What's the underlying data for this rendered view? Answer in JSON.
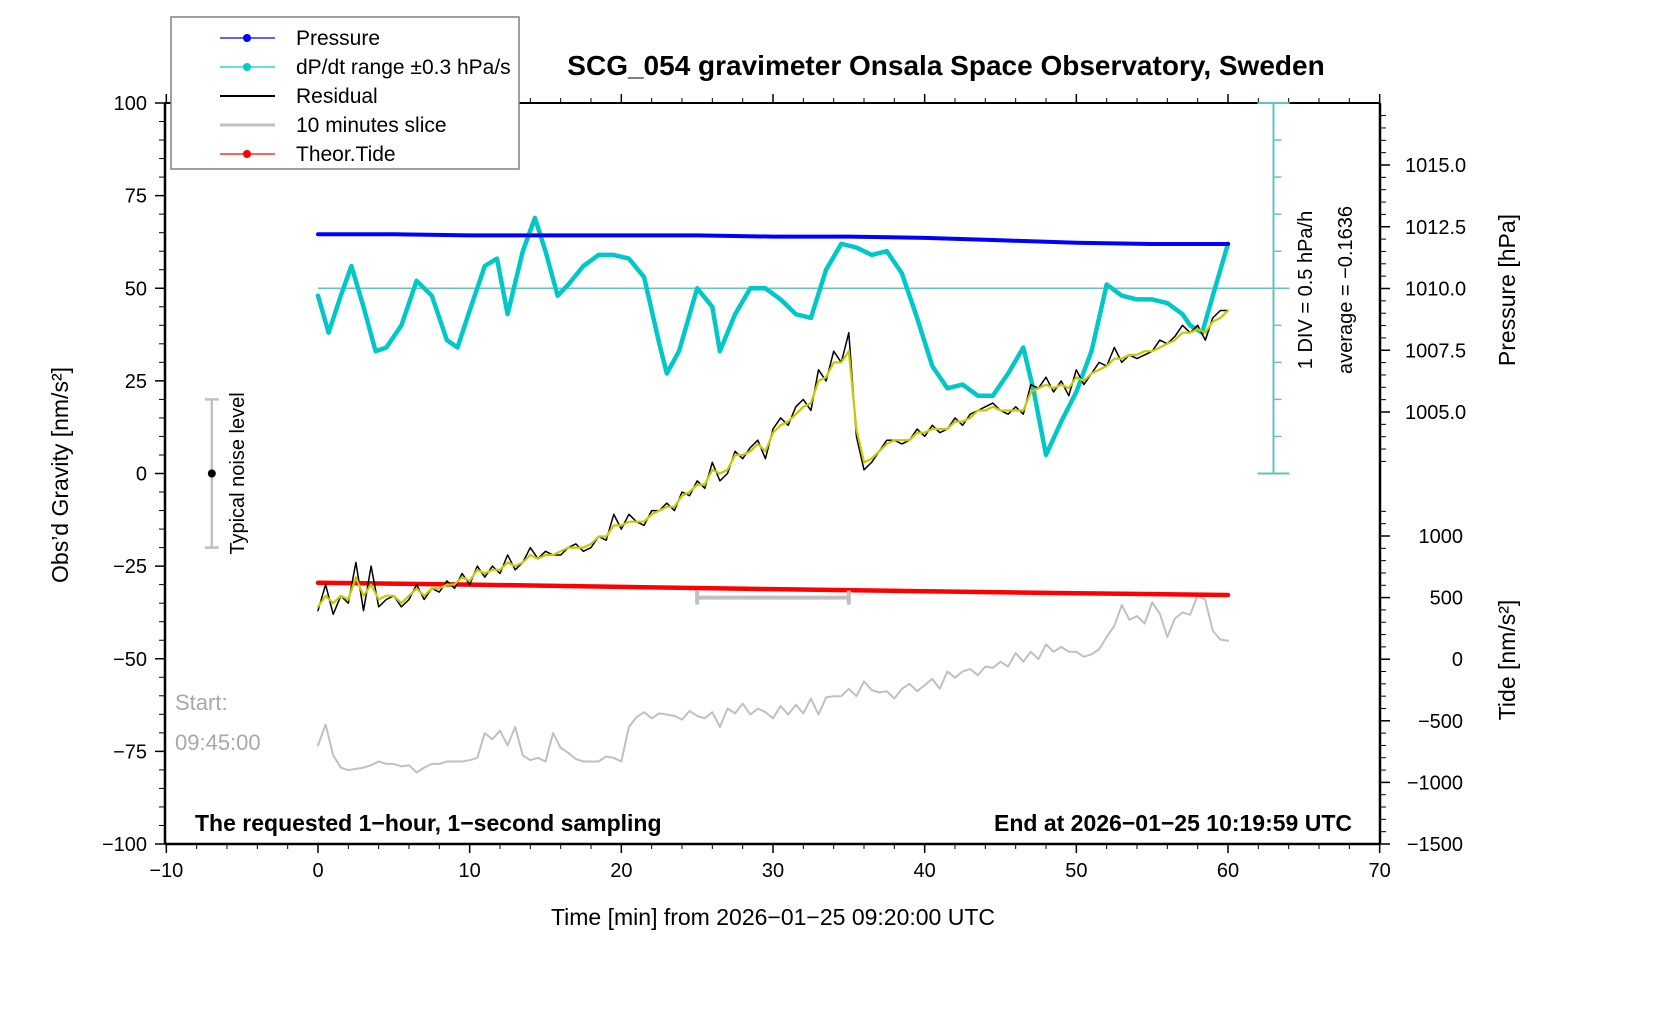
{
  "chart_data": {
    "type": "line",
    "title": "SCG_054 gravimeter Onsala Space Observatory, Sweden",
    "xlabel": "Time [min] from 2026−01−25 09:20:00 UTC",
    "ylabel_left": "Obs’d Gravity [nm/s²]",
    "ylabel_right_pressure": "Pressure [hPa]",
    "ylabel_right_tide": "Tide [nm/s²]",
    "xlim": [
      -10,
      70
    ],
    "ylim_left": [
      -100,
      100
    ],
    "ylim_pressure": [
      1002.5,
      1017.5
    ],
    "ylim_tide": [
      -1500,
      1000
    ],
    "x_ticks": [
      "−10",
      "0",
      "10",
      "20",
      "30",
      "40",
      "50",
      "60",
      "70"
    ],
    "x_tick_values": [
      -10,
      0,
      10,
      20,
      30,
      40,
      50,
      60,
      70
    ],
    "y_left_ticks": [
      "100",
      "75",
      "50",
      "25",
      "0",
      "−25",
      "−50",
      "−75",
      "−100"
    ],
    "y_left_tick_values": [
      100,
      75,
      50,
      25,
      0,
      -25,
      -50,
      -75,
      -100
    ],
    "y_pressure_ticks": [
      "1015.0",
      "1012.5",
      "1010.0",
      "1007.5",
      "1005.0"
    ],
    "y_pressure_tick_values": [
      1015.0,
      1012.5,
      1010.0,
      1007.5,
      1005.0
    ],
    "y_tide_ticks": [
      "1000",
      "500",
      "0",
      "−500",
      "−1000",
      "−1500"
    ],
    "y_tide_tick_values": [
      1000,
      500,
      0,
      -500,
      -1000,
      -1500
    ],
    "legend": {
      "placement": "top-left",
      "entries": [
        {
          "label": "Pressure",
          "color": "#0000ff",
          "marker": true
        },
        {
          "label": "dP/dt range ±0.3 hPa/s",
          "color": "#00cccc",
          "marker": true
        },
        {
          "label": "Residual",
          "color": "#000000",
          "marker": false
        },
        {
          "label": "10 minutes slice",
          "color": "#c0c0c0",
          "marker": false
        },
        {
          "label": "Theor.Tide",
          "color": "#ff0000",
          "marker": true
        }
      ]
    },
    "annotations": {
      "noise_label": "Typical noise level",
      "noise_range": [
        -20,
        20
      ],
      "noise_x": -7,
      "start_label": "Start:",
      "start_time": "09:45:00",
      "slice_range": [
        25,
        35
      ],
      "slice_y": -33.5,
      "footer_left": "The requested 1−hour, 1−second sampling",
      "footer_right": "End at 2026−01−25 10:19:59 UTC",
      "dpdt_scale": "1 DIV = 0.5 hPa/h",
      "dpdt_average": "average = −0.1636",
      "dpdt_axis_x": 63,
      "dpdt_zero_level": 50
    },
    "series": [
      {
        "name": "Pressure",
        "axis": "pressure",
        "color": "#0000ff",
        "x": [
          0,
          5,
          10,
          15,
          20,
          25,
          30,
          35,
          40,
          45,
          50,
          55,
          60
        ],
        "y": [
          1012.2,
          1012.2,
          1012.15,
          1012.15,
          1012.15,
          1012.15,
          1012.1,
          1012.1,
          1012.05,
          1011.95,
          1011.85,
          1011.8,
          1011.8
        ]
      },
      {
        "name": "dP/dt",
        "axis": "left",
        "color": "#00c8c8",
        "x": [
          0,
          0.7,
          1.5,
          2.2,
          3,
          3.8,
          4.5,
          5.5,
          6.5,
          7.5,
          8.5,
          9.2,
          10,
          11,
          11.8,
          12.5,
          13.5,
          14.3,
          15,
          15.8,
          16.5,
          17.5,
          18.5,
          19.5,
          20.5,
          21.5,
          22.5,
          23,
          23.8,
          25,
          26,
          26.5,
          27.5,
          28.5,
          29.5,
          30.5,
          31.5,
          32.5,
          33.5,
          34.5,
          35.5,
          36.5,
          37.5,
          38.5,
          39.5,
          40.5,
          41.5,
          42.5,
          43.5,
          44.5,
          45.5,
          46.5,
          47.2,
          48,
          49,
          50,
          51,
          52,
          53,
          54,
          55,
          56,
          57,
          57.5,
          58.3,
          59,
          60
        ],
        "y": [
          48,
          38,
          48,
          56,
          45,
          33,
          34,
          40,
          52,
          48,
          36,
          34,
          44,
          56,
          58,
          43,
          60,
          69,
          60,
          48,
          51,
          56,
          59,
          59,
          58,
          53,
          35,
          27,
          33,
          50,
          45,
          33,
          43,
          50,
          50,
          47,
          43,
          42,
          55,
          62,
          61,
          59,
          60,
          54,
          42,
          29,
          23,
          24,
          21,
          21,
          27,
          34,
          22,
          5,
          14,
          22,
          33,
          51,
          48,
          47,
          47,
          46,
          43,
          40,
          38,
          48,
          62
        ]
      },
      {
        "name": "Residual",
        "axis": "left",
        "color": "#000000",
        "x": [
          0,
          0.5,
          1,
          1.5,
          2,
          2.5,
          3,
          3.5,
          4,
          4.5,
          5,
          5.5,
          6,
          6.5,
          7,
          7.5,
          8,
          8.5,
          9,
          9.5,
          10,
          10.5,
          11,
          11.5,
          12,
          12.5,
          13,
          13.5,
          14,
          14.5,
          15,
          15.5,
          16,
          16.5,
          17,
          17.5,
          18,
          18.5,
          19,
          19.5,
          20,
          20.5,
          21,
          21.5,
          22,
          22.5,
          23,
          23.5,
          24,
          24.5,
          25,
          25.5,
          26,
          26.5,
          27,
          27.5,
          28,
          28.5,
          29,
          29.5,
          30,
          30.5,
          31,
          31.5,
          32,
          32.5,
          33,
          33.5,
          34,
          34.5,
          35,
          35.5,
          36,
          36.5,
          37,
          37.5,
          38,
          38.5,
          39,
          39.5,
          40,
          40.5,
          41,
          41.5,
          42,
          42.5,
          43,
          43.5,
          44,
          44.5,
          45,
          45.5,
          46,
          46.5,
          47,
          47.5,
          48,
          48.5,
          49,
          49.5,
          50,
          50.5,
          51,
          51.5,
          52,
          52.5,
          53,
          53.5,
          54,
          54.5,
          55,
          55.5,
          56,
          56.5,
          57,
          57.5,
          58,
          58.5,
          59,
          59.5,
          60
        ],
        "y": [
          -37,
          -30,
          -38,
          -33,
          -35,
          -24,
          -37,
          -25,
          -36,
          -34,
          -33,
          -36,
          -34,
          -30,
          -34,
          -31,
          -32,
          -29,
          -31,
          -27,
          -30,
          -25,
          -28,
          -25,
          -27,
          -22,
          -26,
          -24,
          -20,
          -23,
          -21,
          -22,
          -22,
          -20,
          -19,
          -21,
          -20,
          -17,
          -18,
          -11,
          -15,
          -11,
          -13,
          -14,
          -10,
          -10,
          -8,
          -10,
          -5,
          -6,
          -2,
          -4,
          3,
          -2,
          0,
          6,
          4,
          7,
          9,
          4,
          12,
          15,
          13,
          18,
          20,
          17,
          28,
          25,
          33,
          30,
          38,
          10,
          1,
          3,
          6,
          9,
          9,
          8,
          9,
          12,
          10,
          13,
          11,
          12,
          15,
          13,
          16,
          17,
          18,
          19,
          17,
          16,
          18,
          16,
          24,
          23,
          26,
          22,
          25,
          21,
          28,
          24,
          27,
          30,
          29,
          34,
          30,
          32,
          31,
          32,
          33,
          36,
          35,
          37,
          40,
          38,
          40,
          36,
          42,
          44,
          44
        ]
      },
      {
        "name": "Smoothed residual",
        "axis": "left",
        "color": "#c8c800",
        "x": [
          0,
          0.5,
          1,
          1.5,
          2,
          2.5,
          3,
          3.5,
          4,
          4.5,
          5,
          5.5,
          6,
          6.5,
          7,
          7.5,
          8,
          8.5,
          9,
          9.5,
          10,
          10.5,
          11,
          11.5,
          12,
          12.5,
          13,
          13.5,
          14,
          14.5,
          15,
          15.5,
          16,
          16.5,
          17,
          17.5,
          18,
          18.5,
          19,
          19.5,
          20,
          20.5,
          21,
          21.5,
          22,
          22.5,
          23,
          23.5,
          24,
          24.5,
          25,
          25.5,
          26,
          26.5,
          27,
          27.5,
          28,
          28.5,
          29,
          29.5,
          30,
          30.5,
          31,
          31.5,
          32,
          32.5,
          33,
          33.5,
          34,
          34.5,
          35,
          35.5,
          36,
          36.5,
          37,
          37.5,
          38,
          38.5,
          39,
          39.5,
          40,
          40.5,
          41,
          41.5,
          42,
          42.5,
          43,
          43.5,
          44,
          44.5,
          45,
          45.5,
          46,
          46.5,
          47,
          47.5,
          48,
          48.5,
          49,
          49.5,
          50,
          50.5,
          51,
          51.5,
          52,
          52.5,
          53,
          53.5,
          54,
          54.5,
          55,
          55.5,
          56,
          56.5,
          57,
          57.5,
          58,
          58.5,
          59,
          59.5,
          60
        ],
        "y": [
          -36,
          -33,
          -35,
          -33,
          -34,
          -28,
          -33,
          -30,
          -34,
          -33,
          -33,
          -35,
          -33,
          -31,
          -33,
          -31,
          -31,
          -30,
          -30,
          -28,
          -29,
          -26,
          -27,
          -26,
          -26,
          -24,
          -25,
          -24,
          -22,
          -23,
          -22,
          -22,
          -21,
          -20,
          -20,
          -20,
          -19,
          -17,
          -17,
          -14,
          -14,
          -13,
          -13,
          -13,
          -11,
          -10,
          -9,
          -9,
          -6,
          -5,
          -3,
          -3,
          1,
          0,
          1,
          5,
          5,
          6,
          8,
          6,
          11,
          13,
          14,
          16,
          18,
          19,
          25,
          26,
          30,
          30,
          33,
          12,
          3,
          4,
          6,
          8,
          9,
          9,
          9,
          11,
          11,
          12,
          12,
          12,
          14,
          14,
          15,
          17,
          17,
          18,
          17,
          17,
          17,
          17,
          22,
          23,
          24,
          23,
          24,
          23,
          26,
          25,
          27,
          28,
          29,
          31,
          31,
          32,
          32,
          33,
          33,
          34,
          35,
          36,
          38,
          38,
          39,
          38,
          41,
          42,
          44
        ]
      },
      {
        "name": "Theor.Tide",
        "axis": "left",
        "color": "#ff0000",
        "x": [
          0,
          10,
          20,
          30,
          40,
          50,
          60
        ],
        "y": [
          -29.5,
          -30.0,
          -30.6,
          -31.2,
          -31.8,
          -32.3,
          -32.8
        ]
      },
      {
        "name": "Tide (grey)",
        "axis": "tide",
        "color": "#c0c0c0",
        "x": [
          0,
          0.5,
          1,
          1.5,
          2,
          2.5,
          3,
          3.5,
          4,
          4.5,
          5,
          5.5,
          6,
          6.5,
          7,
          7.5,
          8,
          8.5,
          9,
          9.5,
          10,
          10.5,
          11,
          11.5,
          12,
          12.5,
          13,
          13.5,
          14,
          14.5,
          15,
          15.5,
          16,
          16.5,
          17,
          17.5,
          18,
          18.5,
          19,
          19.5,
          20,
          20.5,
          21,
          21.5,
          22,
          22.5,
          23,
          23.5,
          24,
          24.5,
          25,
          25.5,
          26,
          26.5,
          27,
          27.5,
          28,
          28.5,
          29,
          29.5,
          30,
          30.5,
          31,
          31.5,
          32,
          32.5,
          33,
          33.5,
          34,
          34.5,
          35,
          35.5,
          36,
          36.5,
          37,
          37.5,
          38,
          38.5,
          39,
          39.5,
          40,
          40.5,
          41,
          41.5,
          42,
          42.5,
          43,
          43.5,
          44,
          44.5,
          45,
          45.5,
          46,
          46.5,
          47,
          47.5,
          48,
          48.5,
          49,
          49.5,
          50,
          50.5,
          51,
          51.5,
          52,
          52.5,
          53,
          53.5,
          54,
          54.5,
          55,
          55.5,
          56,
          56.5,
          57,
          57.5,
          58,
          58.5,
          59,
          59.5,
          60
        ],
        "y": [
          -700,
          -530,
          -780,
          -880,
          -900,
          -890,
          -880,
          -860,
          -830,
          -850,
          -850,
          -870,
          -860,
          -920,
          -880,
          -850,
          -850,
          -830,
          -830,
          -830,
          -820,
          -800,
          -600,
          -650,
          -580,
          -700,
          -550,
          -780,
          -820,
          -800,
          -830,
          -600,
          -720,
          -760,
          -810,
          -830,
          -830,
          -830,
          -790,
          -800,
          -830,
          -550,
          -470,
          -430,
          -480,
          -440,
          -450,
          -460,
          -490,
          -420,
          -460,
          -480,
          -430,
          -550,
          -400,
          -440,
          -360,
          -450,
          -400,
          -430,
          -480,
          -380,
          -450,
          -370,
          -440,
          -320,
          -450,
          -310,
          -300,
          -300,
          -240,
          -300,
          -180,
          -250,
          -270,
          -260,
          -320,
          -240,
          -200,
          -260,
          -210,
          -160,
          -240,
          -100,
          -150,
          -100,
          -80,
          -130,
          -60,
          -70,
          -20,
          -60,
          50,
          -20,
          60,
          0,
          120,
          60,
          100,
          60,
          60,
          20,
          40,
          80,
          180,
          270,
          440,
          320,
          350,
          290,
          460,
          370,
          180,
          330,
          380,
          360,
          520,
          480,
          230,
          160,
          150
        ]
      }
    ]
  }
}
